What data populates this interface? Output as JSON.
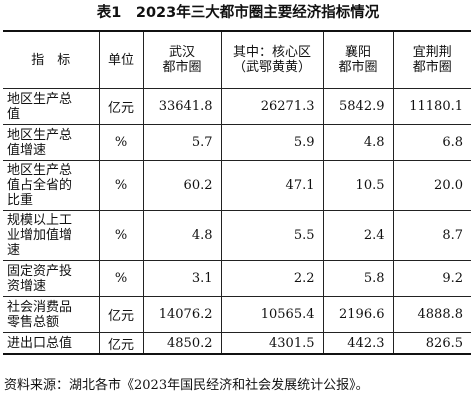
{
  "title": "表1　2023年三大都市圈主要经济指标情况",
  "headers": {
    "indicator": "指　标",
    "unit": "单位",
    "wuhan": "武汉\n都市圈",
    "core": "其中：核心区\n（武鄂黄黄）",
    "xiangyang": "襄阳\n都市圈",
    "yijingjing": "宜荆荆\n都市圈"
  },
  "rows": [
    {
      "indicator": "地区生产总\n值",
      "unit": "亿元",
      "wuhan": "33641.8",
      "core": "26271.3",
      "xiangyang": "5842.9",
      "yijingjing": "11180.1"
    },
    {
      "indicator": "地区生产总\n值增速",
      "unit": "%",
      "wuhan": "5.7",
      "core": "5.9",
      "xiangyang": "4.8",
      "yijingjing": "6.8"
    },
    {
      "indicator": "地区生产总\n值占全省的\n比重",
      "unit": "%",
      "wuhan": "60.2",
      "core": "47.1",
      "xiangyang": "10.5",
      "yijingjing": "20.0"
    },
    {
      "indicator": "规模以上工\n业增加值增\n速",
      "unit": "%",
      "wuhan": "4.8",
      "core": "5.5",
      "xiangyang": "2.4",
      "yijingjing": "8.7"
    },
    {
      "indicator": "固定资产投\n资增速",
      "unit": "%",
      "wuhan": "3.1",
      "core": "2.2",
      "xiangyang": "5.8",
      "yijingjing": "9.2"
    },
    {
      "indicator": "社会消费品\n零售总额",
      "unit": "亿元",
      "wuhan": "14076.2",
      "core": "10565.4",
      "xiangyang": "2196.6",
      "yijingjing": "4888.8"
    },
    {
      "indicator": "进出口总值",
      "unit": "亿元",
      "wuhan": "4850.2",
      "core": "4301.5",
      "xiangyang": "442.3",
      "yijingjing": "826.5"
    }
  ],
  "source": "资料来源：湖北各市《2023年国民经济和社会发展统计公报》。"
}
